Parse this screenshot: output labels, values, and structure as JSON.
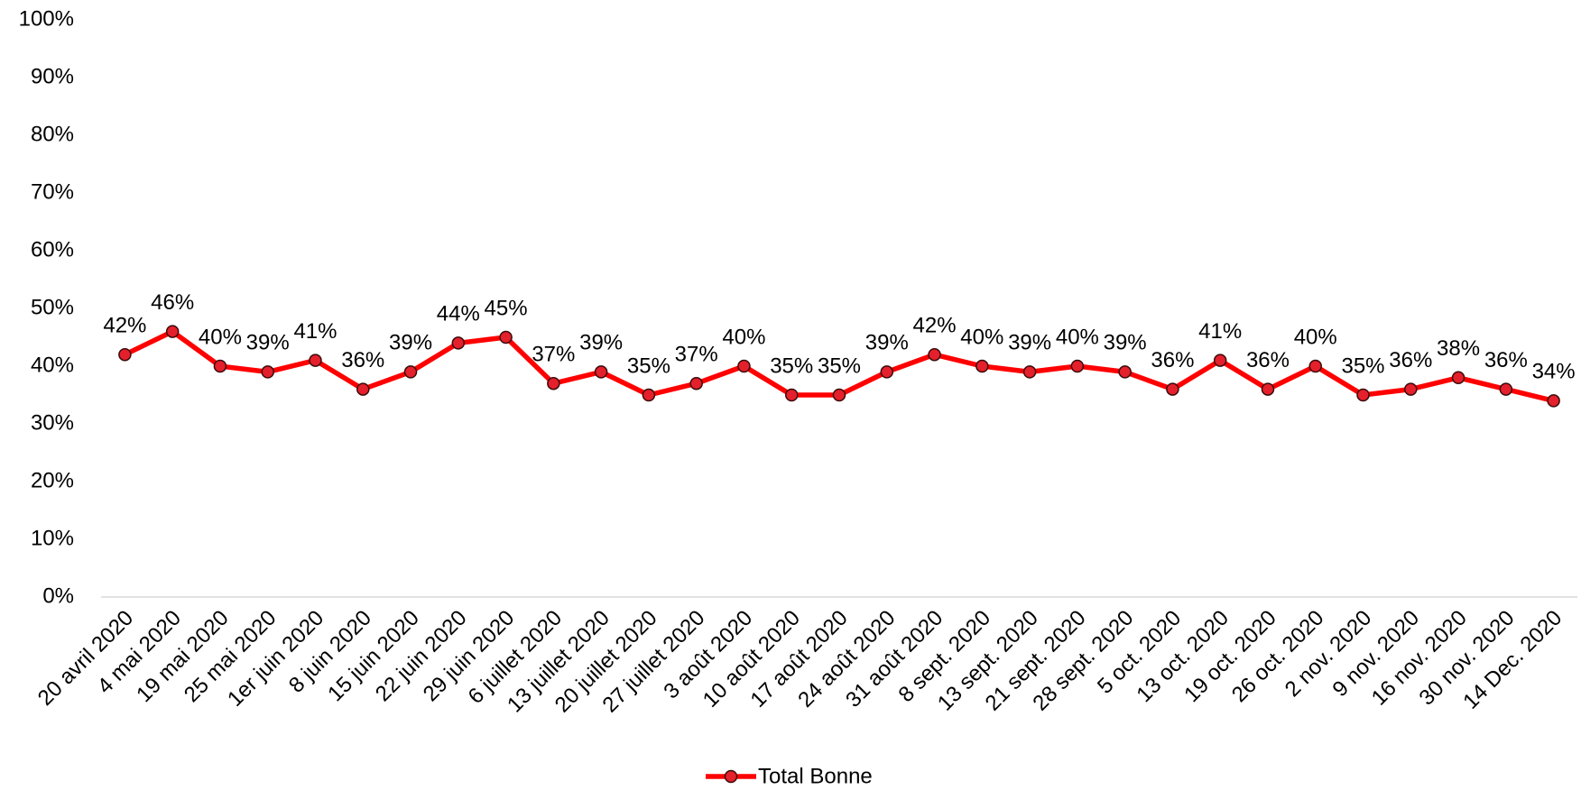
{
  "chart_data": {
    "type": "line",
    "categories": [
      "20 avril 2020",
      "4 mai 2020",
      "19 mai 2020",
      "25 mai 2020",
      "1er juin 2020",
      "8 juin 2020",
      "15 juin 2020",
      "22 juin 2020",
      "29 juin 2020",
      "6 juillet 2020",
      "13 juillet 2020",
      "20 juillet 2020",
      "27 juillet 2020",
      "3 août 2020",
      "10 août 2020",
      "17 août 2020",
      "24 août 2020",
      "31 août 2020",
      "8 sept. 2020",
      "13 sept. 2020",
      "21 sept. 2020",
      "28 sept. 2020",
      "5 oct. 2020",
      "13 oct. 2020",
      "19 oct. 2020",
      "26 oct. 2020",
      "2 nov. 2020",
      "9 nov. 2020",
      "16 nov. 2020",
      "30 nov. 2020",
      "14 Dec. 2020"
    ],
    "series": [
      {
        "name": "Total Bonne",
        "color": "#ff0000",
        "marker_color": "#e3202b",
        "values": [
          42,
          46,
          40,
          39,
          41,
          36,
          39,
          44,
          45,
          37,
          39,
          35,
          37,
          40,
          35,
          35,
          39,
          42,
          40,
          39,
          40,
          39,
          36,
          41,
          36,
          40,
          35,
          36,
          38,
          36,
          34
        ],
        "value_labels": [
          "42%",
          "46%",
          "40%",
          "39%",
          "41%",
          "36%",
          "39%",
          "44%",
          "45%",
          "37%",
          "39%",
          "35%",
          "37%",
          "40%",
          "35%",
          "35%",
          "39%",
          "42%",
          "40%",
          "39%",
          "40%",
          "39%",
          "36%",
          "41%",
          "36%",
          "40%",
          "35%",
          "36%",
          "38%",
          "36%",
          "34%"
        ]
      }
    ],
    "ylim": [
      0,
      100
    ],
    "yticks": [
      {
        "value": 0,
        "label": "0%"
      },
      {
        "value": 10,
        "label": "10%"
      },
      {
        "value": 20,
        "label": "20%"
      },
      {
        "value": 30,
        "label": "30%"
      },
      {
        "value": 40,
        "label": "40%"
      },
      {
        "value": 50,
        "label": "50%"
      },
      {
        "value": 60,
        "label": "60%"
      },
      {
        "value": 70,
        "label": "70%"
      },
      {
        "value": 80,
        "label": "80%"
      },
      {
        "value": 90,
        "label": "90%"
      },
      {
        "value": 100,
        "label": "100%"
      }
    ],
    "grid": false,
    "legend": "bottom"
  }
}
